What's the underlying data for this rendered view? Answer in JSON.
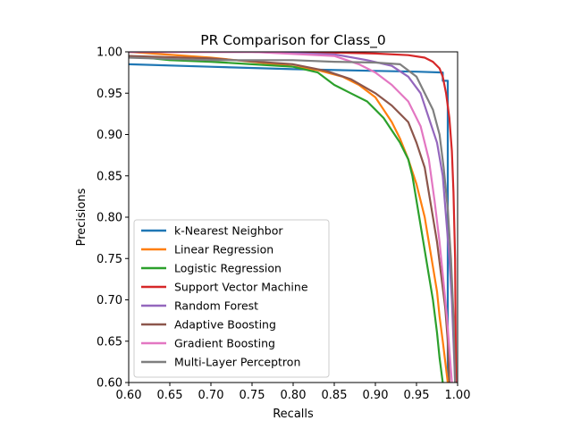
{
  "chart_data": {
    "type": "line",
    "title": "PR Comparison for Class_0",
    "xlabel": "Recalls",
    "ylabel": "Precisions",
    "xlim": [
      0.6,
      1.0
    ],
    "ylim": [
      0.6,
      1.0
    ],
    "xticks": [
      "0.60",
      "0.65",
      "0.70",
      "0.75",
      "0.80",
      "0.85",
      "0.90",
      "0.95",
      "1.00"
    ],
    "yticks": [
      "0.60",
      "0.65",
      "0.70",
      "0.75",
      "0.80",
      "0.85",
      "0.90",
      "0.95",
      "1.00"
    ],
    "grid": false,
    "legend_position": "lower-left",
    "series": [
      {
        "name": "k-Nearest Neighbor",
        "color": "#1f77b4",
        "x": [
          0.6,
          0.7,
          0.8,
          0.9,
          0.95,
          0.982,
          0.982,
          0.988,
          0.988
        ],
        "y": [
          0.985,
          0.982,
          0.979,
          0.977,
          0.976,
          0.975,
          0.965,
          0.965,
          0.6
        ]
      },
      {
        "name": "Linear Regression",
        "color": "#ff7f0e",
        "x": [
          0.6,
          0.7,
          0.78,
          0.83,
          0.86,
          0.88,
          0.9,
          0.91,
          0.92,
          0.93,
          0.94,
          0.95,
          0.96,
          0.965,
          0.97,
          0.975,
          0.978,
          0.982,
          0.985,
          0.988
        ],
        "y": [
          1.0,
          0.993,
          0.985,
          0.978,
          0.97,
          0.96,
          0.945,
          0.93,
          0.915,
          0.895,
          0.87,
          0.84,
          0.8,
          0.77,
          0.74,
          0.71,
          0.68,
          0.65,
          0.625,
          0.6
        ]
      },
      {
        "name": "Logistic Regression",
        "color": "#2ca02c",
        "x": [
          0.6,
          0.65,
          0.7,
          0.75,
          0.8,
          0.83,
          0.85,
          0.87,
          0.89,
          0.9,
          0.91,
          0.92,
          0.93,
          0.94,
          0.945,
          0.95,
          0.955,
          0.96,
          0.965,
          0.97,
          0.975,
          0.978,
          0.982
        ],
        "y": [
          0.995,
          0.99,
          0.988,
          0.985,
          0.982,
          0.975,
          0.96,
          0.95,
          0.94,
          0.93,
          0.92,
          0.905,
          0.89,
          0.87,
          0.85,
          0.82,
          0.79,
          0.76,
          0.73,
          0.7,
          0.66,
          0.63,
          0.6
        ]
      },
      {
        "name": "Support Vector Machine",
        "color": "#d62728",
        "x": [
          0.6,
          0.75,
          0.85,
          0.9,
          0.94,
          0.96,
          0.97,
          0.978,
          0.982,
          0.986,
          0.99,
          0.993,
          0.995,
          0.997,
          0.998
        ],
        "y": [
          1.0,
          1.0,
          0.999,
          0.998,
          0.996,
          0.993,
          0.988,
          0.98,
          0.97,
          0.95,
          0.92,
          0.88,
          0.83,
          0.75,
          0.6
        ]
      },
      {
        "name": "Random Forest",
        "color": "#9467bd",
        "x": [
          0.6,
          0.75,
          0.85,
          0.89,
          0.92,
          0.94,
          0.955,
          0.965,
          0.975,
          0.982,
          0.986,
          0.99,
          0.993,
          0.995,
          0.997
        ],
        "y": [
          1.0,
          1.0,
          0.997,
          0.99,
          0.983,
          0.97,
          0.95,
          0.92,
          0.89,
          0.85,
          0.8,
          0.75,
          0.7,
          0.65,
          0.6
        ]
      },
      {
        "name": "Adaptive Boosting",
        "color": "#8c564b",
        "x": [
          0.6,
          0.7,
          0.8,
          0.84,
          0.87,
          0.9,
          0.92,
          0.94,
          0.95,
          0.96,
          0.965,
          0.97,
          0.975,
          0.98,
          0.985,
          0.988,
          0.99
        ],
        "y": [
          0.995,
          0.992,
          0.985,
          0.977,
          0.967,
          0.95,
          0.935,
          0.915,
          0.89,
          0.86,
          0.83,
          0.8,
          0.77,
          0.73,
          0.69,
          0.65,
          0.6
        ]
      },
      {
        "name": "Gradient Boosting",
        "color": "#e377c2",
        "x": [
          0.6,
          0.75,
          0.85,
          0.88,
          0.9,
          0.92,
          0.94,
          0.955,
          0.965,
          0.972,
          0.978,
          0.983,
          0.987,
          0.99,
          0.993
        ],
        "y": [
          1.0,
          1.0,
          0.995,
          0.985,
          0.975,
          0.96,
          0.94,
          0.91,
          0.87,
          0.82,
          0.77,
          0.72,
          0.68,
          0.64,
          0.6
        ]
      },
      {
        "name": "Multi-Layer Perceptron",
        "color": "#7f7f7f",
        "x": [
          0.6,
          0.7,
          0.8,
          0.85,
          0.9,
          0.93,
          0.95,
          0.96,
          0.97,
          0.978,
          0.983,
          0.988,
          0.992,
          0.995,
          0.997
        ],
        "y": [
          0.993,
          0.99,
          0.99,
          0.988,
          0.987,
          0.985,
          0.97,
          0.95,
          0.93,
          0.9,
          0.86,
          0.81,
          0.75,
          0.68,
          0.6
        ]
      }
    ]
  }
}
